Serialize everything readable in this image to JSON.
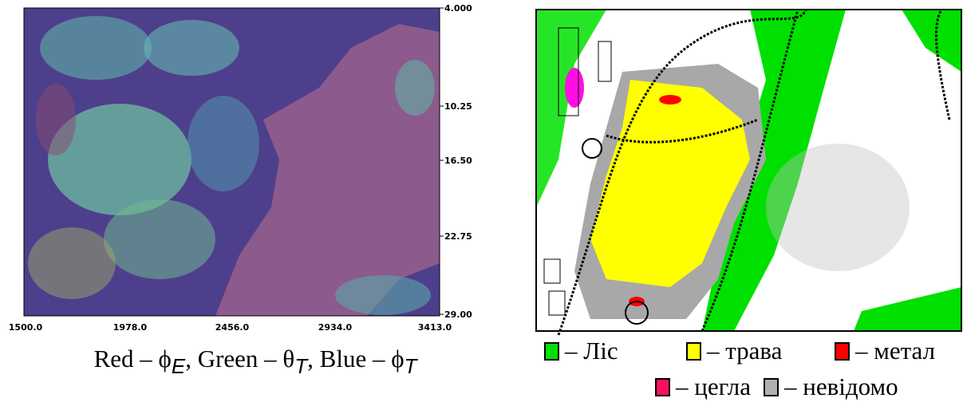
{
  "left_panel": {
    "x_ticks": [
      "1500.0",
      "1978.0",
      "2456.0",
      "2934.0",
      "3413.0"
    ],
    "y_ticks": [
      "4.000",
      "10.25",
      "16.50",
      "22.75",
      "29.00"
    ],
    "caption": [
      "Red – ϕ",
      "E",
      ", Green – θ",
      "T",
      ", Blue – ϕ",
      "T"
    ]
  },
  "right_panel": {
    "legend": [
      {
        "color": "#00e000",
        "label": "– Ліс"
      },
      {
        "color": "#ffff00",
        "label": "– трава"
      },
      {
        "color": "#ff0000",
        "label": "– метал"
      },
      {
        "color": "#ff1060",
        "label": "– цегла"
      },
      {
        "color": "#b0b0b0",
        "label": "– невідомо"
      }
    ]
  }
}
